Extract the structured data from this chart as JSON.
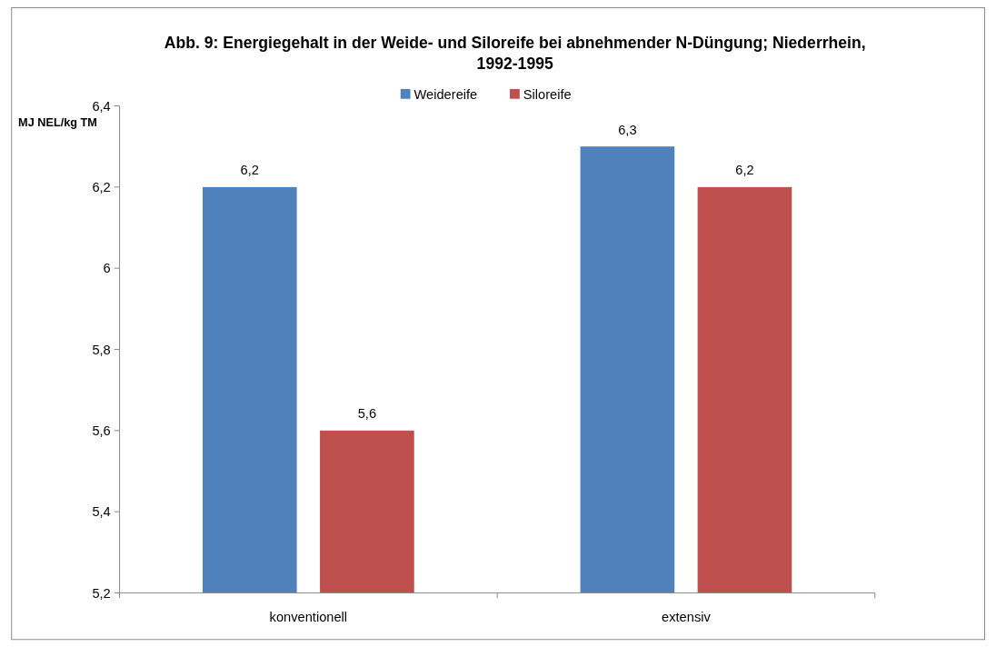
{
  "chart_data": {
    "type": "bar",
    "title": "Abb. 9: Energiegehalt in der Weide- und Siloreife bei abnehmender N-Düngung; Niederrhein, 1992-1995",
    "ylabel": "MJ NEL/kg TM",
    "categories": [
      "konventionell",
      "extensiv"
    ],
    "series": [
      {
        "name": "Weidereife",
        "color": "#4f81bd",
        "values": [
          6.2,
          6.3
        ],
        "value_labels": [
          "6,2",
          "6,3"
        ]
      },
      {
        "name": "Siloreife",
        "color": "#c0504d",
        "values": [
          5.6,
          6.2
        ],
        "value_labels": [
          "5,6",
          "6,2"
        ]
      }
    ],
    "ylim": [
      5.2,
      6.4
    ],
    "yticks": [
      {
        "value": 5.2,
        "label": "5,2"
      },
      {
        "value": 5.4,
        "label": "5,4"
      },
      {
        "value": 5.6,
        "label": "5,6"
      },
      {
        "value": 5.8,
        "label": "5,8"
      },
      6,
      {
        "value": 6.2,
        "label": "6,2"
      },
      {
        "value": 6.4,
        "label": "6,4"
      }
    ],
    "grid": false,
    "legend": "top"
  }
}
